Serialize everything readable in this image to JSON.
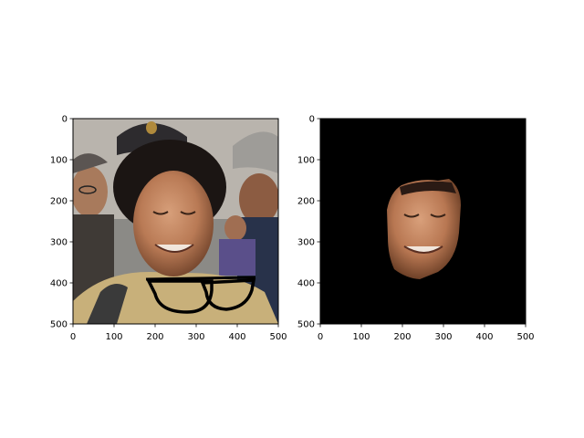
{
  "chart_data": [
    {
      "type": "image",
      "title": "",
      "xlabel": "",
      "ylabel": "",
      "xlim": [
        0,
        500
      ],
      "ylim": [
        500,
        0
      ],
      "xticks": [
        0,
        100,
        200,
        300,
        400,
        500
      ],
      "yticks": [
        0,
        100,
        200,
        300,
        400,
        500
      ],
      "grid": false,
      "content": "photo of smiling curly-haired man with police officers, black eyeglasses overlay near bottom-center"
    },
    {
      "type": "image",
      "title": "",
      "xlabel": "",
      "ylabel": "",
      "xlim": [
        0,
        500
      ],
      "ylim": [
        500,
        0
      ],
      "xticks": [
        0,
        100,
        200,
        300,
        400,
        500
      ],
      "yticks": [
        0,
        100,
        200,
        300,
        400,
        500
      ],
      "grid": false,
      "content": "segmented face on black background"
    }
  ],
  "colors": {
    "mask_background": "#000000",
    "axis": "#000000"
  }
}
